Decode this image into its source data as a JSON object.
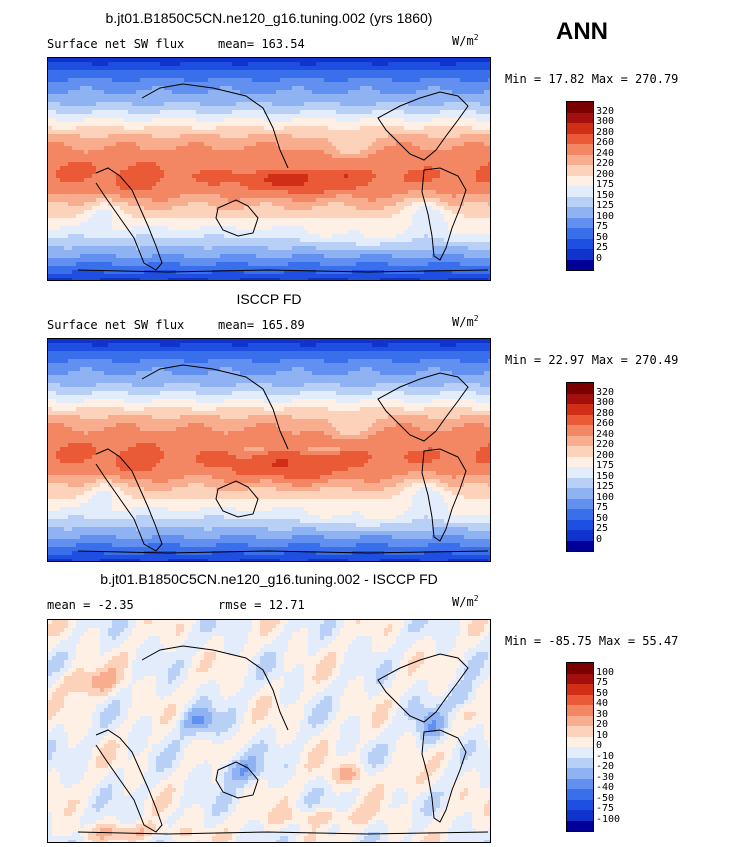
{
  "season": "ANN",
  "units_main": "W/m",
  "units_exp": "2",
  "panels": [
    {
      "title": "b.jt01.B1850C5CN.ne120_g16.tuning.002 (yrs 1860)",
      "left_text": "Surface net SW flux",
      "right_text": "mean= 163.54",
      "minmax": "Min =  17.82 Max = 270.79",
      "kind": "abs"
    },
    {
      "title": "ISCCP FD",
      "left_text": "Surface net SW flux",
      "right_text": "mean= 165.89",
      "minmax": "Min =  22.97 Max = 270.49",
      "kind": "abs"
    },
    {
      "title": "b.jt01.B1850C5CN.ne120_g16.tuning.002 - ISCCP FD",
      "left_text": "mean =   -2.35",
      "right_text": "rmse =   12.71",
      "minmax": "Min = -85.75 Max =  55.47",
      "kind": "diff"
    }
  ],
  "chart_data": [
    {
      "type": "heatmap",
      "title": "b.jt01.B1850C5CN.ne120_g16.tuning.002 (yrs 1860)",
      "variable": "Surface net SW flux",
      "units": "W/m2",
      "mean": 163.54,
      "min": 17.82,
      "max": 270.79,
      "colorbar": {
        "levels": [
          0,
          25,
          50,
          75,
          100,
          125,
          150,
          175,
          200,
          220,
          240,
          260,
          280,
          300,
          320
        ],
        "colors": [
          "#000099",
          "#0f33cc",
          "#1f4fe0",
          "#3a6fec",
          "#6190f0",
          "#8fb2f3",
          "#b9d0f6",
          "#e2ecfa",
          "#fff0e6",
          "#fcd2bb",
          "#f8ad8e",
          "#f38763",
          "#ea5a37",
          "#d12e17",
          "#a30f0c",
          "#7a0000"
        ]
      }
    },
    {
      "type": "heatmap",
      "title": "ISCCP FD",
      "variable": "Surface net SW flux",
      "units": "W/m2",
      "mean": 165.89,
      "min": 22.97,
      "max": 270.49,
      "colorbar": {
        "levels": [
          0,
          25,
          50,
          75,
          100,
          125,
          150,
          175,
          200,
          220,
          240,
          260,
          280,
          300,
          320
        ],
        "colors": [
          "#000099",
          "#0f33cc",
          "#1f4fe0",
          "#3a6fec",
          "#6190f0",
          "#8fb2f3",
          "#b9d0f6",
          "#e2ecfa",
          "#fff0e6",
          "#fcd2bb",
          "#f8ad8e",
          "#f38763",
          "#ea5a37",
          "#d12e17",
          "#a30f0c",
          "#7a0000"
        ]
      }
    },
    {
      "type": "heatmap",
      "title": "b.jt01.B1850C5CN.ne120_g16.tuning.002 - ISCCP FD",
      "units": "W/m2",
      "mean": -2.35,
      "rmse": 12.71,
      "min": -85.75,
      "max": 55.47,
      "colorbar": {
        "levels": [
          -100,
          -75,
          -50,
          -40,
          -30,
          -20,
          -10,
          0,
          10,
          20,
          30,
          40,
          50,
          75,
          100
        ],
        "colors": [
          "#000099",
          "#0f33cc",
          "#1f4fe0",
          "#3a6fec",
          "#6190f0",
          "#8fb2f3",
          "#b9d0f6",
          "#e2ecfa",
          "#fff0e6",
          "#fcd2bb",
          "#f8ad8e",
          "#f38763",
          "#ea5a37",
          "#d12e17",
          "#a30f0c",
          "#7a0000"
        ]
      }
    }
  ]
}
